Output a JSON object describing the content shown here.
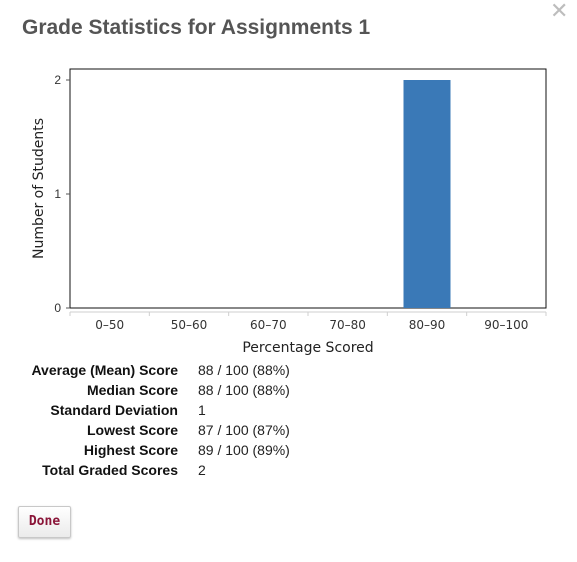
{
  "dialog": {
    "title": "Grade Statistics for Assignments 1",
    "close_icon": "close-icon"
  },
  "chart_data": {
    "type": "bar",
    "title": "",
    "xlabel": "Percentage Scored",
    "ylabel": "Number of Students",
    "categories": [
      "0–50",
      "50–60",
      "60–70",
      "70–80",
      "80–90",
      "90–100"
    ],
    "values": [
      0,
      0,
      0,
      0,
      2,
      0
    ],
    "yticks": [
      "0",
      "1",
      "2"
    ],
    "ylim": [
      0,
      2
    ],
    "grid": false,
    "bar_color": "#3a79b7"
  },
  "stats": [
    {
      "label": "Average (Mean) Score",
      "value": "88 / 100 (88%)"
    },
    {
      "label": "Median Score",
      "value": "88 / 100 (88%)"
    },
    {
      "label": "Standard Deviation",
      "value": "1"
    },
    {
      "label": "Lowest Score",
      "value": "87 / 100 (87%)"
    },
    {
      "label": "Highest Score",
      "value": "89 / 100 (89%)"
    },
    {
      "label": "Total Graded Scores",
      "value": "2"
    }
  ],
  "actions": {
    "done_label": "Done",
    "done_color": "#8a1538"
  }
}
